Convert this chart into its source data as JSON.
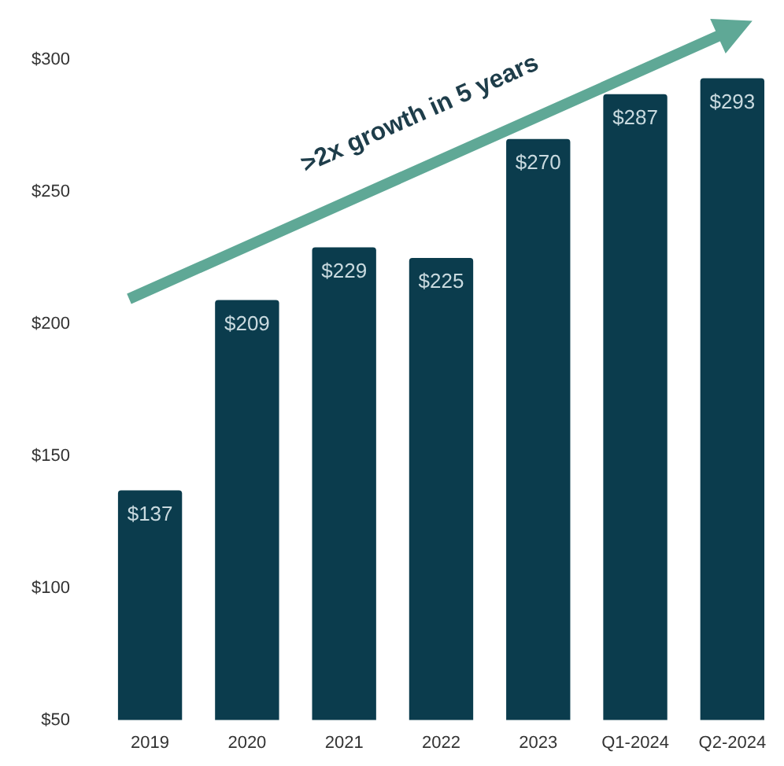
{
  "chart_data": {
    "type": "bar",
    "categories": [
      "2019",
      "2020",
      "2021",
      "2022",
      "2023",
      "Q1-2024",
      "Q2-2024"
    ],
    "values": [
      137,
      209,
      229,
      225,
      270,
      287,
      293
    ],
    "value_labels": [
      "$137",
      "$209",
      "$229",
      "$225",
      "$270",
      "$287",
      "$293"
    ],
    "color": "#0b3c4d",
    "ylim": [
      50,
      300
    ],
    "yticks": [
      {
        "value": 50,
        "label": "$50"
      },
      {
        "value": 100,
        "label": "$100"
      },
      {
        "value": 150,
        "label": "$150"
      },
      {
        "value": 200,
        "label": "$200"
      },
      {
        "value": 250,
        "label": "$250"
      },
      {
        "value": 300,
        "label": "$300"
      }
    ],
    "annotations": [
      ">2x growth in 5 years"
    ],
    "grid": false,
    "legend": false
  }
}
